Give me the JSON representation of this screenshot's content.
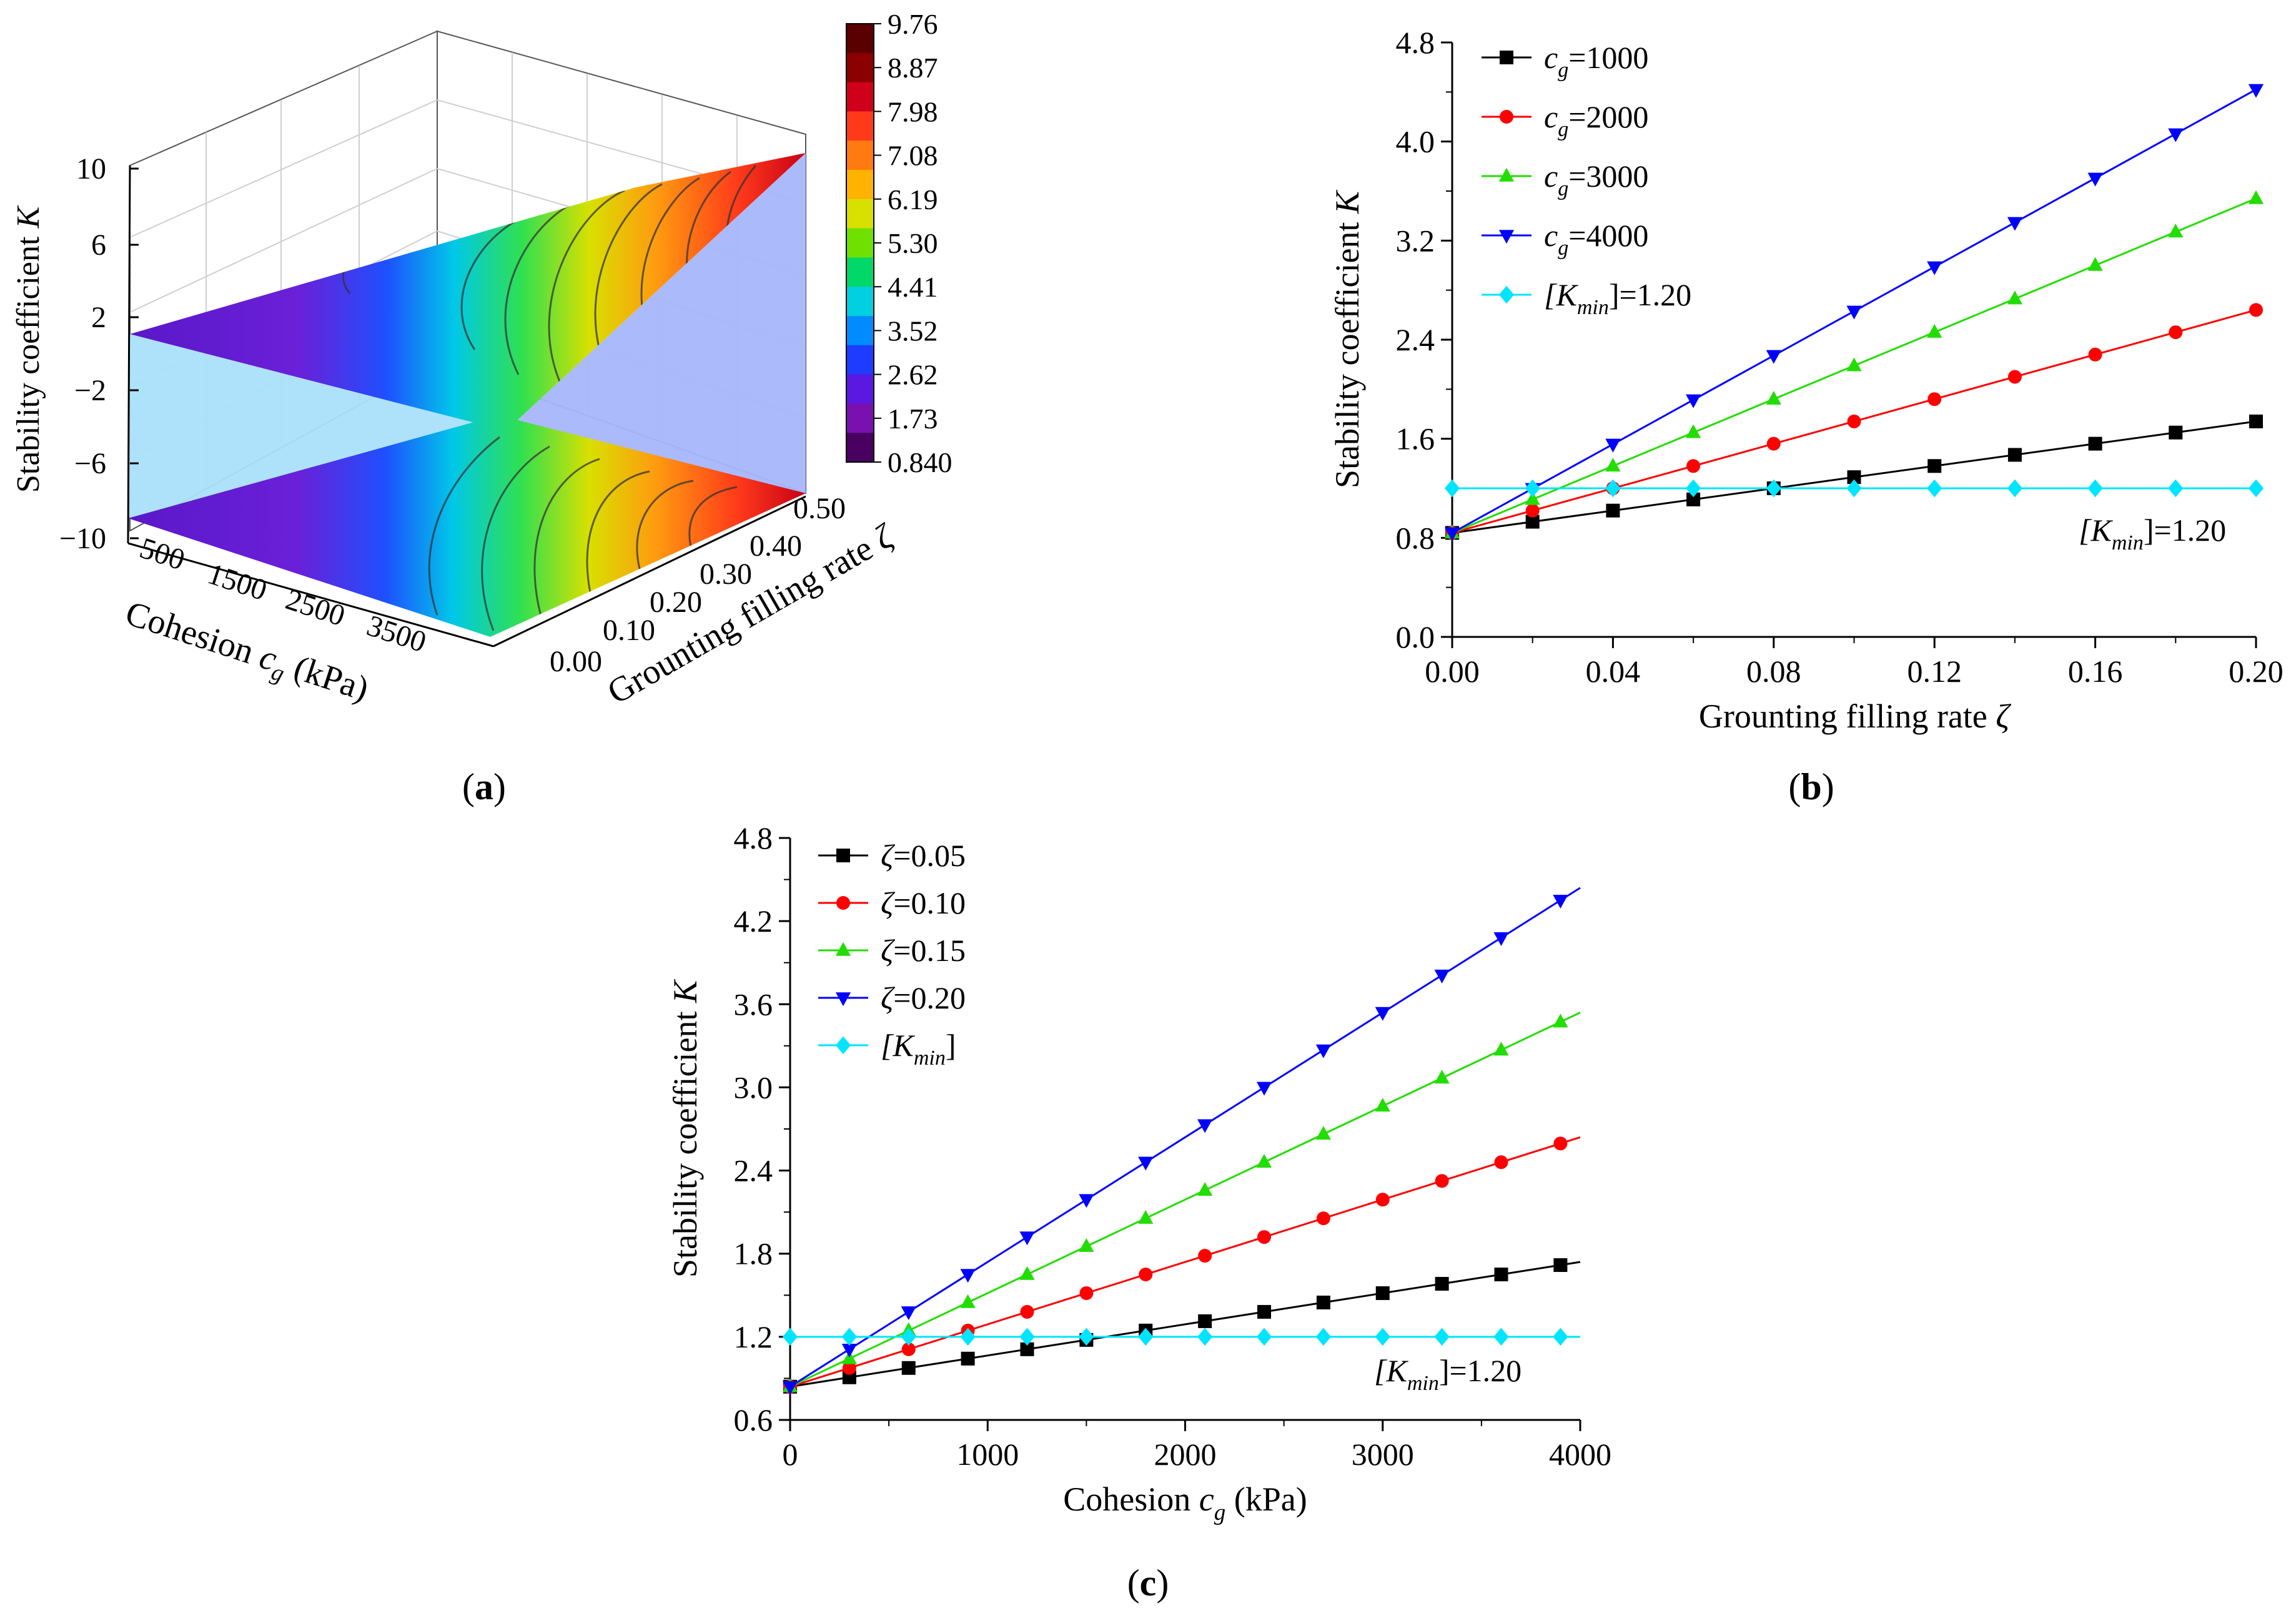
{
  "figure": {
    "caption_a": "a",
    "caption_b": "b",
    "caption_c": "c"
  },
  "chart_data": [
    {
      "id": "a",
      "type": "surface3d",
      "zlabel": "Stability coefficient",
      "zlabel_symbol": "K",
      "z_ticks": [
        "10",
        "6",
        "2",
        "−2",
        "−6",
        "−10"
      ],
      "xlabel": "Cohesion",
      "xlabel_symbol": "c",
      "xlabel_sub": "g",
      "xlabel_unit": "(kPa)",
      "x_ticks": [
        "500",
        "1500",
        "2500",
        "3500"
      ],
      "ylabel": "Grounting filling rate",
      "ylabel_symbol": "ζ",
      "y_ticks": [
        "0.00",
        "0.10",
        "0.20",
        "0.30",
        "0.40",
        "0.50"
      ],
      "colorbar_ticks": [
        "9.76",
        "8.87",
        "7.98",
        "7.08",
        "6.19",
        "5.30",
        "4.41",
        "3.52",
        "2.62",
        "1.73",
        "0.840"
      ],
      "colorbar_colors": [
        "#5a0000",
        "#8b0000",
        "#d0001a",
        "#ff3a1a",
        "#ff7a10",
        "#ffb300",
        "#d8e000",
        "#6fe000",
        "#00d86a",
        "#00d0e0",
        "#008cff",
        "#1e3cff",
        "#5a18e0",
        "#7a10b0",
        "#4a0060"
      ]
    },
    {
      "id": "b",
      "type": "line",
      "xlabel": "Grounting filling rate",
      "xlabel_symbol": "ζ",
      "ylabel": "Stability coefficient",
      "ylabel_symbol": "K",
      "xlim": [
        0,
        0.2
      ],
      "ylim": [
        0,
        4.8
      ],
      "x_ticks": [
        "0.00",
        "0.04",
        "0.08",
        "0.12",
        "0.16",
        "0.20"
      ],
      "y_ticks": [
        "0.0",
        "0.8",
        "1.6",
        "2.4",
        "3.2",
        "4.0",
        "4.8"
      ],
      "x_step": 0.02,
      "series": [
        {
          "name": "cg=1000",
          "sym": "c",
          "sub": "g",
          "val": "=1000",
          "color": "#000000",
          "marker": "square",
          "y0": 0.84,
          "y1": 1.74
        },
        {
          "name": "cg=2000",
          "sym": "c",
          "sub": "g",
          "val": "=2000",
          "color": "#ff0000",
          "marker": "circle",
          "y0": 0.84,
          "y1": 2.64
        },
        {
          "name": "cg=3000",
          "sym": "c",
          "sub": "g",
          "val": "=3000",
          "color": "#22dd00",
          "marker": "triangle",
          "y0": 0.84,
          "y1": 3.54
        },
        {
          "name": "cg=4000",
          "sym": "c",
          "sub": "g",
          "val": "=4000",
          "color": "#0000ff",
          "marker": "triangle-down",
          "y0": 0.84,
          "y1": 4.42
        },
        {
          "name": "[Kmin]=1.20",
          "sym": "[K",
          "sub": "min",
          "val": "]=1.20",
          "color": "#00e5ff",
          "marker": "diamond",
          "y0": 1.2,
          "y1": 1.2
        }
      ],
      "annotation": {
        "sym": "[K",
        "sub": "min",
        "val": "]=1.20"
      }
    },
    {
      "id": "c",
      "type": "line",
      "xlabel": "Cohesion",
      "xlabel_symbol": "c",
      "xlabel_sub": "g",
      "xlabel_unit": "(kPa)",
      "ylabel": "Stability coefficient",
      "ylabel_symbol": "K",
      "xlim": [
        0,
        4000
      ],
      "ylim": [
        0.6,
        4.8
      ],
      "x_ticks": [
        "0",
        "1000",
        "2000",
        "3000",
        "4000"
      ],
      "y_ticks": [
        "0.6",
        "1.2",
        "1.8",
        "2.4",
        "3.0",
        "3.6",
        "4.2",
        "4.8"
      ],
      "x_step": 300,
      "x_end": 3900,
      "series": [
        {
          "name": "ζ=0.05",
          "sym": "ζ",
          "sub": "",
          "val": "=0.05",
          "color": "#000000",
          "marker": "square",
          "y0": 0.84,
          "y1": 1.74
        },
        {
          "name": "ζ=0.10",
          "sym": "ζ",
          "sub": "",
          "val": "=0.10",
          "color": "#ff0000",
          "marker": "circle",
          "y0": 0.84,
          "y1": 2.64
        },
        {
          "name": "ζ=0.15",
          "sym": "ζ",
          "sub": "",
          "val": "=0.15",
          "color": "#22dd00",
          "marker": "triangle",
          "y0": 0.84,
          "y1": 3.54
        },
        {
          "name": "ζ=0.20",
          "sym": "ζ",
          "sub": "",
          "val": "=0.20",
          "color": "#0000ff",
          "marker": "triangle-down",
          "y0": 0.84,
          "y1": 4.44
        },
        {
          "name": "[Kmin]",
          "sym": "[K",
          "sub": "min",
          "val": "]",
          "color": "#00e5ff",
          "marker": "diamond",
          "y0": 1.2,
          "y1": 1.2
        }
      ],
      "annotation": {
        "sym": "[K",
        "sub": "min",
        "val": "]=1.20"
      }
    }
  ]
}
